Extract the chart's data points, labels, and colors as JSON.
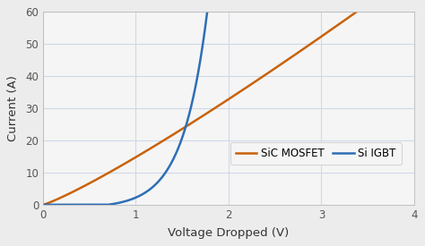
{
  "title": "",
  "xlabel": "Voltage Dropped (V)",
  "ylabel": "Current (A)",
  "xlim": [
    0,
    4
  ],
  "ylim": [
    0,
    60
  ],
  "xticks": [
    0,
    1,
    2,
    3,
    4
  ],
  "yticks": [
    0,
    10,
    20,
    30,
    40,
    50,
    60
  ],
  "igbt_color": "#2E6EB5",
  "mosfet_color": "#C8620A",
  "legend_labels": [
    "Si IGBT",
    "SiC MOSFET"
  ],
  "background_color": "#F5F5F5",
  "grid_color": "#D0D8E8",
  "fig_bg": "#ECECEC",
  "igbt_threshold": 0.7,
  "igbt_k": 3.8,
  "igbt_scale": 1.05,
  "mosfet_a": 14.8,
  "mosfet_exp": 1.15
}
